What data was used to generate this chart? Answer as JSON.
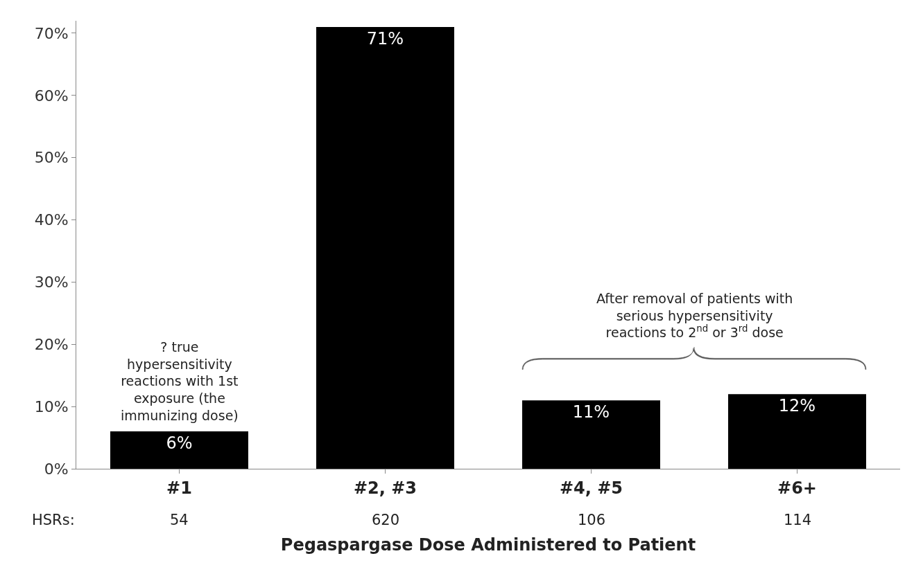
{
  "chart_data": {
    "type": "bar",
    "xlabel": "Pegaspargase Dose Administered to Patient",
    "categories": [
      "#1",
      "#2, #3",
      "#4, #5",
      "#6+"
    ],
    "values": [
      6,
      71,
      11,
      12
    ],
    "value_labels": [
      "6%",
      "71%",
      "11%",
      "12%"
    ],
    "color": "#000000",
    "ylim": [
      0,
      72
    ],
    "yticks": [
      {
        "value": 0,
        "label": "0%"
      },
      {
        "value": 10,
        "label": "10%"
      },
      {
        "value": 20,
        "label": "20%"
      },
      {
        "value": 30,
        "label": "30%"
      },
      {
        "value": 40,
        "label": "40%"
      },
      {
        "value": 50,
        "label": "50%"
      },
      {
        "value": 60,
        "label": "60%"
      },
      {
        "value": 70,
        "label": "70%"
      }
    ],
    "legend": false,
    "annotations": [
      "? true hypersensitivity reactions with 1st exposure (the immunizing dose)",
      "After removal of patients with serious hypersensitivity reactions to 2$^{nd}$ or 3$^{rd}$ dose",
      "HSRs:",
      "54",
      "620",
      "106",
      "114"
    ]
  }
}
